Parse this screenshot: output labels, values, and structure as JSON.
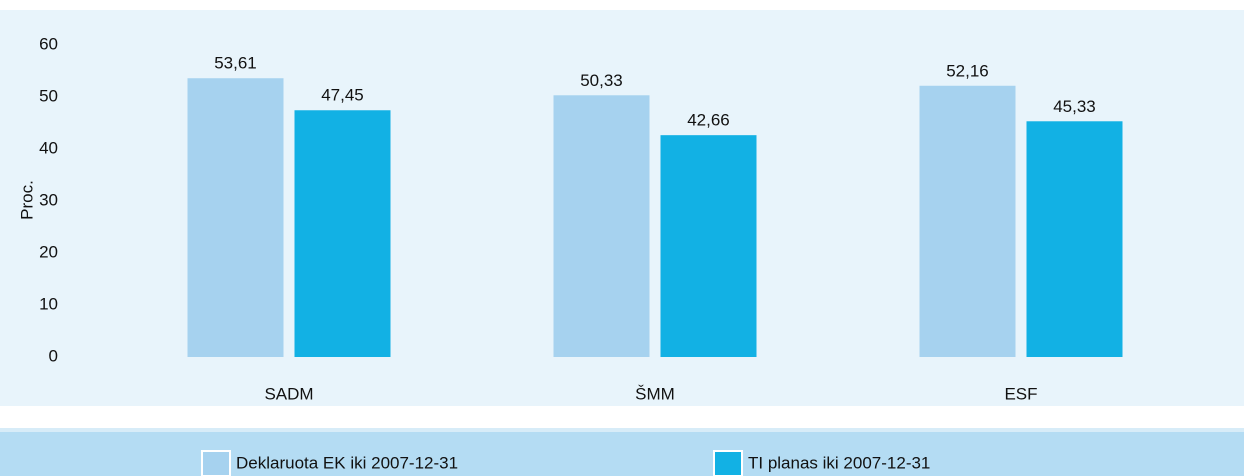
{
  "chart_data": {
    "type": "bar",
    "y_label": "Proc.",
    "categories": [
      "SADM",
      "ŠMM",
      "ESF"
    ],
    "series": [
      {
        "name": "Deklaruota EK iki 2007-12-31",
        "color": "#a6d2ef",
        "values": [
          53.61,
          50.33,
          52.16
        ],
        "value_labels": [
          "53,61",
          "50,33",
          "52,16"
        ]
      },
      {
        "name": "TI planas iki 2007-12-31",
        "color": "#12b1e4",
        "values": [
          47.45,
          42.66,
          45.33
        ],
        "value_labels": [
          "47,45",
          "42,66",
          "45,33"
        ]
      }
    ],
    "ylim": [
      0,
      60
    ],
    "yticks": [
      0,
      10,
      20,
      30,
      40,
      50,
      60
    ],
    "grid": false,
    "legend": "bottom"
  }
}
